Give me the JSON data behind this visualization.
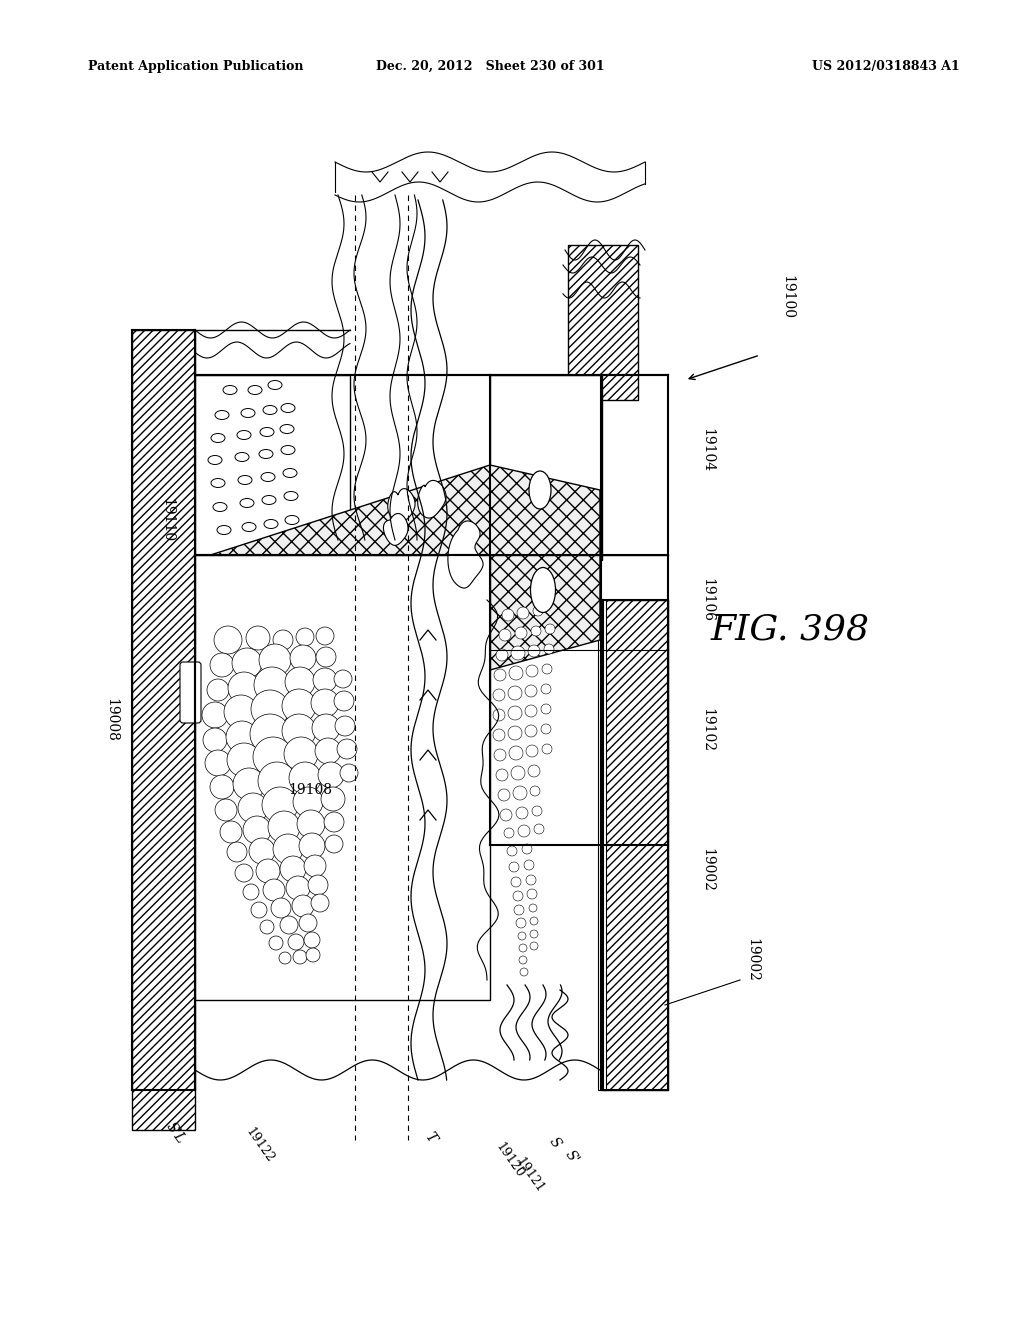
{
  "header_left": "Patent Application Publication",
  "header_mid": "Dec. 20, 2012   Sheet 230 of 301",
  "header_right": "US 2012/0318843 A1",
  "fig_label": "FIG. 398",
  "bg_color": "#ffffff"
}
